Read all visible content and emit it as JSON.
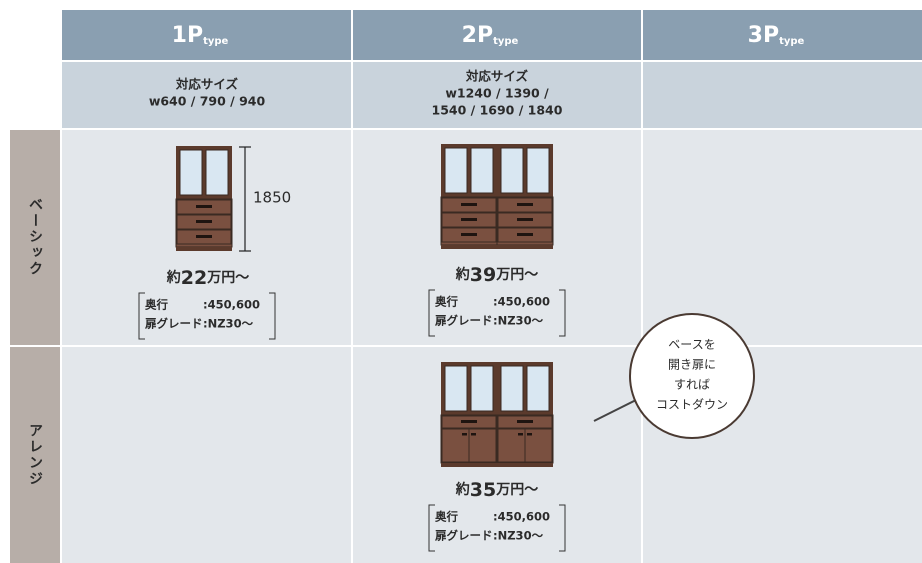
{
  "headers": [
    {
      "main": "1P",
      "sub": "type"
    },
    {
      "main": "2P",
      "sub": "type"
    },
    {
      "main": "3P",
      "sub": "type"
    }
  ],
  "sizes": [
    {
      "label": "対応サイズ",
      "lines": [
        "w640 / 790 / 940"
      ]
    },
    {
      "label": "対応サイズ",
      "lines": [
        "w1240 / 1390 /",
        "1540 / 1690 / 1840"
      ]
    }
  ],
  "rows": [
    {
      "label": "ベーシック",
      "cells": [
        {
          "height": "1850",
          "price": {
            "prefix": "約",
            "number": "22",
            "suffix": "万円～"
          },
          "specs": [
            {
              "label": "奥行",
              "value": ":450,600"
            },
            {
              "label": "扉グレード",
              "value": ":NZ30～"
            }
          ]
        },
        {
          "price": {
            "prefix": "約",
            "number": "39",
            "suffix": "万円～"
          },
          "specs": [
            {
              "label": "奥行",
              "value": ":450,600"
            },
            {
              "label": "扉グレード",
              "value": ":NZ30～"
            }
          ]
        }
      ]
    },
    {
      "label": "アレンジ",
      "cells": [
        {
          "price": {
            "prefix": "約",
            "number": "35",
            "suffix": "万円～"
          },
          "specs": [
            {
              "label": "奥行",
              "value": ":450,600"
            },
            {
              "label": "扉グレード",
              "value": ":NZ30～"
            }
          ]
        }
      ]
    }
  ],
  "bubble": [
    "ベースを",
    "開き扉に",
    "すれば",
    "コストダウン"
  ]
}
